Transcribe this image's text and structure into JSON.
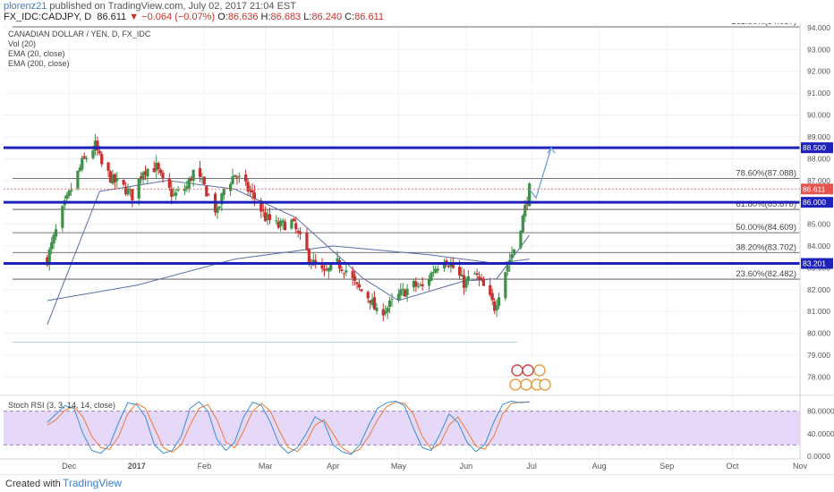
{
  "header": {
    "username": "plorenz21",
    "published_text": "published on TradingView.com, July 02, 2017 21:04 EST",
    "symbol": "FX_IDC:CADJPY, D",
    "last": "86.611",
    "change": "▼ −0.064 (−0.07%)",
    "o_label": "O:",
    "o": "86.636",
    "h_label": "H:",
    "h": "86.683",
    "l_label": "L:",
    "l": "86.240",
    "c_label": "C:",
    "c": "86.611"
  },
  "legend": [
    "CANADIAN DOLLAR / YEN, D, FX_IDC",
    "Vol (20)",
    "EMA (20, close)",
    "EMA (200, close)"
  ],
  "footer": {
    "created": "Created with",
    "brand": "TradingView"
  },
  "colors": {
    "up": "#3f8f4a",
    "down": "#c8302c",
    "blue_level": "#1e22b8",
    "ema": "#5a6fa8",
    "rsi_k": "#3a8fd0",
    "rsi_d": "#ef7b32",
    "rsi_fill": "#e6d8f8",
    "last_tag": "#e8534f"
  },
  "chart_data": {
    "type": "candlestick",
    "title": "CANADIAN DOLLAR / YEN, D, FX_IDC",
    "ylim": [
      77.2,
      94.2
    ],
    "y_ticks": [
      "78.000",
      "79.000",
      "80.000",
      "81.000",
      "82.000",
      "83.000",
      "84.000",
      "85.000",
      "86.000",
      "87.000",
      "88.000",
      "89.000",
      "90.000",
      "91.000",
      "92.000",
      "93.000",
      "94.000"
    ],
    "x_ticks": [
      "Dec",
      "2017",
      "Feb",
      "Mar",
      "Apr",
      "May",
      "Jun",
      "Jul",
      "Aug",
      "Sep",
      "Oct",
      "Nov"
    ],
    "levels_blue": [
      {
        "value": 88.5,
        "label": "88.500"
      },
      {
        "value": 86.0,
        "label": "86.000"
      },
      {
        "value": 83.201,
        "label": "83.201"
      }
    ],
    "fib_levels": [
      {
        "value": 94.037,
        "label": "161.80%(94.037)"
      },
      {
        "value": 87.088,
        "label": "78.60%(87.088)"
      },
      {
        "value": 85.676,
        "label": "61.80%(85.676)"
      },
      {
        "value": 84.609,
        "label": "50.00%(84.609)"
      },
      {
        "value": 83.702,
        "label": "38.20%(83.702)"
      },
      {
        "value": 82.482,
        "label": "23.60%(82.482)"
      }
    ],
    "last_price": {
      "value": 86.611,
      "label": "86.611"
    },
    "close_path": [
      [
        "2016-11-21",
        83.4
      ],
      [
        "2016-11-28",
        85.6
      ],
      [
        "2016-12-02",
        86.6
      ],
      [
        "2016-12-07",
        87.8
      ],
      [
        "2016-12-13",
        88.6
      ],
      [
        "2016-12-16",
        87.7
      ],
      [
        "2016-12-21",
        87.0
      ],
      [
        "2016-12-27",
        86.6
      ],
      [
        "2016-12-30",
        86.3
      ],
      [
        "2017-01-04",
        87.5
      ],
      [
        "2017-01-10",
        87.6
      ],
      [
        "2017-01-13",
        86.9
      ],
      [
        "2017-01-18",
        86.3
      ],
      [
        "2017-01-24",
        86.7
      ],
      [
        "2017-01-27",
        87.4
      ],
      [
        "2017-02-01",
        86.7
      ],
      [
        "2017-02-07",
        85.5
      ],
      [
        "2017-02-10",
        86.6
      ],
      [
        "2017-02-15",
        87.3
      ],
      [
        "2017-02-20",
        86.7
      ],
      [
        "2017-02-24",
        86.2
      ],
      [
        "2017-03-01",
        85.3
      ],
      [
        "2017-03-07",
        84.9
      ],
      [
        "2017-03-13",
        85.1
      ],
      [
        "2017-03-17",
        84.3
      ],
      [
        "2017-03-22",
        83.3
      ],
      [
        "2017-03-28",
        82.7
      ],
      [
        "2017-04-03",
        83.2
      ],
      [
        "2017-04-07",
        82.9
      ],
      [
        "2017-04-12",
        82.1
      ],
      [
        "2017-04-18",
        81.6
      ],
      [
        "2017-04-21",
        80.9
      ],
      [
        "2017-04-26",
        81.2
      ],
      [
        "2017-05-02",
        81.8
      ],
      [
        "2017-05-08",
        82.2
      ],
      [
        "2017-05-12",
        82.1
      ],
      [
        "2017-05-17",
        82.9
      ],
      [
        "2017-05-22",
        83.5
      ],
      [
        "2017-05-26",
        83.0
      ],
      [
        "2017-05-31",
        82.3
      ],
      [
        "2017-06-05",
        82.7
      ],
      [
        "2017-06-09",
        82.1
      ],
      [
        "2017-06-14",
        81.2
      ],
      [
        "2017-06-19",
        82.9
      ],
      [
        "2017-06-23",
        83.9
      ],
      [
        "2017-06-27",
        85.3
      ],
      [
        "2017-06-30",
        86.611
      ]
    ],
    "projection": [
      [
        "2017-06-30",
        86.611
      ],
      [
        "2017-07-03",
        86.2
      ],
      [
        "2017-07-10",
        88.5
      ]
    ],
    "ema200_path": [
      [
        "2016-11-21",
        81.5
      ],
      [
        "2017-01-01",
        82.2
      ],
      [
        "2017-02-15",
        83.4
      ],
      [
        "2017-04-01",
        84.0
      ],
      [
        "2017-05-15",
        83.6
      ],
      [
        "2017-06-15",
        83.2
      ],
      [
        "2017-06-30",
        83.4
      ]
    ],
    "ema20_path": [
      [
        "2016-11-21",
        80.4
      ],
      [
        "2016-12-15",
        86.5
      ],
      [
        "2017-01-15",
        87.0
      ],
      [
        "2017-02-15",
        86.6
      ],
      [
        "2017-03-15",
        85.3
      ],
      [
        "2017-04-15",
        82.5
      ],
      [
        "2017-05-01",
        81.5
      ],
      [
        "2017-05-31",
        82.4
      ],
      [
        "2017-06-15",
        82.5
      ],
      [
        "2017-06-30",
        84.5
      ]
    ],
    "stoch_rsi": {
      "title": "Stoch RSI (3, 3, 14, 14, close)",
      "ylim": [
        -5,
        105
      ],
      "y_ticks": [
        "0.0000",
        "40.0000",
        "80.0000"
      ],
      "band": [
        20,
        80
      ],
      "k_values": [
        60,
        75,
        90,
        85,
        40,
        10,
        5,
        20,
        60,
        95,
        92,
        70,
        20,
        5,
        10,
        35,
        85,
        97,
        80,
        30,
        10,
        25,
        70,
        96,
        90,
        60,
        20,
        5,
        15,
        40,
        70,
        60,
        20,
        8,
        3,
        20,
        55,
        85,
        95,
        98,
        90,
        50,
        15,
        10,
        40,
        75,
        60,
        25,
        8,
        20,
        60,
        92,
        98,
        95,
        97
      ],
      "d_values": [
        55,
        65,
        82,
        88,
        70,
        35,
        15,
        12,
        35,
        75,
        94,
        85,
        50,
        15,
        7,
        20,
        55,
        85,
        92,
        65,
        25,
        15,
        45,
        80,
        94,
        80,
        45,
        15,
        8,
        25,
        55,
        65,
        40,
        15,
        5,
        12,
        35,
        65,
        88,
        96,
        94,
        75,
        35,
        12,
        22,
        55,
        70,
        45,
        18,
        12,
        35,
        75,
        94,
        96,
        96
      ]
    }
  }
}
